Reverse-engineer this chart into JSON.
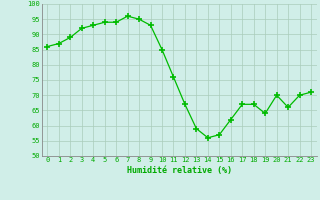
{
  "x": [
    0,
    1,
    2,
    3,
    4,
    5,
    6,
    7,
    8,
    9,
    10,
    11,
    12,
    13,
    14,
    15,
    16,
    17,
    18,
    19,
    20,
    21,
    22,
    23
  ],
  "y": [
    86,
    87,
    89,
    92,
    93,
    94,
    94,
    96,
    95,
    93,
    85,
    76,
    67,
    59,
    56,
    57,
    62,
    67,
    67,
    64,
    70,
    66,
    70,
    71
  ],
  "line_color": "#00bb00",
  "marker_color": "#00bb00",
  "bg_color": "#d0eee8",
  "grid_color": "#aaccbb",
  "xlabel": "Humidité relative (%)",
  "xlabel_color": "#00aa00",
  "tick_color": "#00aa00",
  "ylim": [
    50,
    100
  ],
  "xlim": [
    -0.5,
    23.5
  ],
  "yticks": [
    50,
    55,
    60,
    65,
    70,
    75,
    80,
    85,
    90,
    95,
    100
  ],
  "xticks": [
    0,
    1,
    2,
    3,
    4,
    5,
    6,
    7,
    8,
    9,
    10,
    11,
    12,
    13,
    14,
    15,
    16,
    17,
    18,
    19,
    20,
    21,
    22,
    23
  ]
}
